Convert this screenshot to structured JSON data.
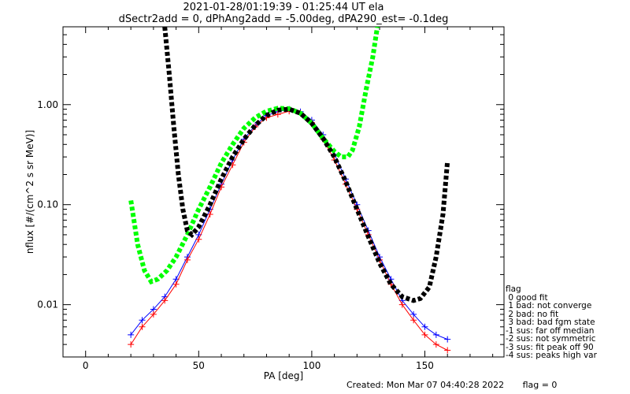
{
  "chart_data": {
    "type": "line",
    "title": "2021-01-28/01:19:39 - 01:25:44 UT ela",
    "subtitle": "dSectr2add = 0, dPhAng2add = -5.00deg, dPA290_est=   -0.1deg",
    "xlabel": "PA [deg]",
    "ylabel": "nflux [#/(cm^2 s sr MeV)]",
    "xlim": [
      -10,
      185
    ],
    "ylim": [
      0.003,
      6.0
    ],
    "yscale": "log",
    "xticks": [
      0,
      50,
      100,
      150
    ],
    "yticks": [
      0.01,
      0.1,
      1.0
    ],
    "ytick_labels": [
      "0.01",
      "0.10",
      "1.00"
    ],
    "series": [
      {
        "color": "#0000ff",
        "marker": "+",
        "x": [
          20,
          25,
          30,
          35,
          40,
          45,
          50,
          55,
          60,
          65,
          70,
          75,
          80,
          85,
          90,
          95,
          100,
          105,
          110,
          115,
          120,
          125,
          130,
          135,
          140,
          145,
          150,
          155,
          160
        ],
        "y": [
          0.005,
          0.007,
          0.009,
          0.012,
          0.018,
          0.03,
          0.05,
          0.09,
          0.16,
          0.28,
          0.45,
          0.62,
          0.78,
          0.85,
          0.9,
          0.85,
          0.7,
          0.5,
          0.32,
          0.18,
          0.1,
          0.055,
          0.03,
          0.018,
          0.011,
          0.008,
          0.006,
          0.005,
          0.0045
        ]
      },
      {
        "color": "#ff0000",
        "marker": "+",
        "x": [
          20,
          25,
          30,
          35,
          40,
          45,
          50,
          55,
          60,
          65,
          70,
          75,
          80,
          85,
          90,
          95,
          100,
          105,
          110,
          115,
          120,
          125,
          130,
          135,
          140,
          145,
          150,
          155,
          160
        ],
        "y": [
          0.004,
          0.006,
          0.008,
          0.011,
          0.016,
          0.028,
          0.045,
          0.08,
          0.15,
          0.25,
          0.42,
          0.6,
          0.74,
          0.8,
          0.86,
          0.82,
          0.66,
          0.45,
          0.28,
          0.16,
          0.09,
          0.05,
          0.028,
          0.016,
          0.01,
          0.007,
          0.005,
          0.004,
          0.0035
        ]
      },
      {
        "color": "#00ff00",
        "dashed": true,
        "x": [
          20,
          23,
          26,
          29,
          32,
          36,
          40,
          45,
          50,
          55,
          60,
          65,
          70,
          75,
          80,
          85,
          90,
          95,
          100,
          105,
          110,
          113,
          116,
          118,
          121,
          124,
          127,
          129
        ],
        "y": [
          0.11,
          0.04,
          0.022,
          0.017,
          0.018,
          0.022,
          0.03,
          0.05,
          0.09,
          0.15,
          0.26,
          0.4,
          0.58,
          0.74,
          0.86,
          0.92,
          0.91,
          0.82,
          0.65,
          0.46,
          0.34,
          0.3,
          0.3,
          0.35,
          0.6,
          1.4,
          3.0,
          6.0
        ]
      },
      {
        "color": "#000000",
        "dashed": true,
        "x": [
          35,
          37,
          39,
          41,
          43,
          45,
          47,
          50,
          55,
          60,
          65,
          70,
          75,
          80,
          85,
          90,
          95,
          100,
          105,
          110,
          115,
          120,
          125,
          130,
          135,
          140,
          145,
          148,
          152,
          155,
          158,
          160
        ],
        "y": [
          6.0,
          2.0,
          0.6,
          0.2,
          0.09,
          0.055,
          0.05,
          0.06,
          0.1,
          0.18,
          0.3,
          0.45,
          0.62,
          0.78,
          0.88,
          0.9,
          0.82,
          0.65,
          0.46,
          0.3,
          0.17,
          0.09,
          0.048,
          0.026,
          0.016,
          0.012,
          0.011,
          0.0115,
          0.015,
          0.03,
          0.08,
          0.27
        ]
      }
    ],
    "flag_legend": {
      "title": "flag",
      "entries": [
        " 0 good fit",
        " 1 bad: not converge",
        " 2 bad: no fit",
        " 3 bad: bad fgm state",
        "-1 sus: far off median",
        "-2 sus: not symmetric",
        "-3 sus: fit peak off 90",
        "-4 sus: peaks high var"
      ]
    },
    "footer": {
      "created": "Created: Mon Mar 07 04:40:28 2022",
      "flag": "flag = 0"
    },
    "grid": false
  }
}
